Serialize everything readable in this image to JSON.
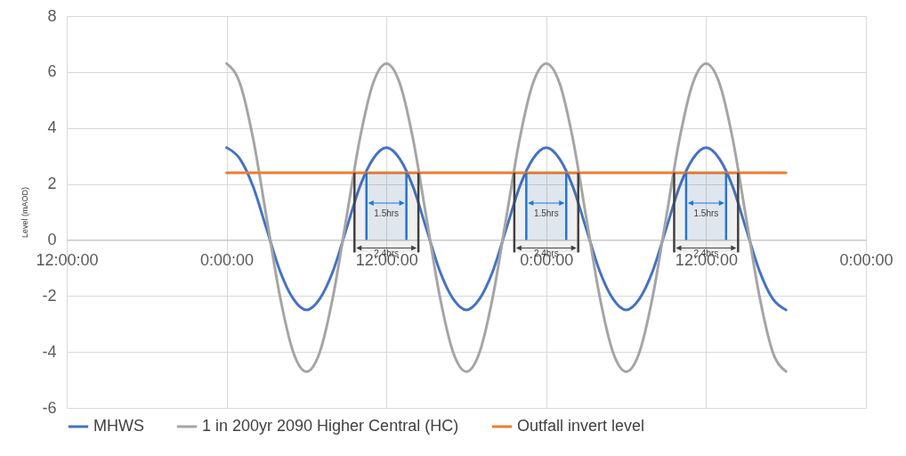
{
  "chart_data": {
    "type": "line",
    "ylabel": "Level (mAOD)",
    "x": [
      "2000-01-02T00:00",
      "2000-01-02T01:00",
      "2000-01-02T02:00",
      "2000-01-02T03:00",
      "2000-01-02T04:00",
      "2000-01-02T05:00",
      "2000-01-02T06:00",
      "2000-01-02T07:00",
      "2000-01-02T08:00",
      "2000-01-02T09:00",
      "2000-01-02T10:00",
      "2000-01-02T11:00",
      "2000-01-02T12:00",
      "2000-01-02T13:00",
      "2000-01-02T14:00",
      "2000-01-02T15:00",
      "2000-01-02T16:00",
      "2000-01-02T17:00",
      "2000-01-02T18:00",
      "2000-01-02T19:00",
      "2000-01-02T20:00",
      "2000-01-02T21:00",
      "2000-01-02T22:00",
      "2000-01-02T23:00",
      "2000-01-03T00:00",
      "2000-01-03T01:00",
      "2000-01-03T02:00",
      "2000-01-03T03:00",
      "2000-01-03T04:00",
      "2000-01-03T05:00",
      "2000-01-03T06:00",
      "2000-01-03T07:00",
      "2000-01-03T08:00",
      "2000-01-03T09:00",
      "2000-01-03T10:00",
      "2000-01-03T11:00",
      "2000-01-03T12:00",
      "2000-01-03T13:00",
      "2000-01-03T14:00",
      "2000-01-03T15:00",
      "2000-01-03T16:00",
      "2000-01-03T17:00",
      "2000-01-03T18:00"
    ],
    "series": [
      {
        "name": "MHWS",
        "color": "#4472c4",
        "values": [
          3.3,
          2.9,
          1.9,
          0.4,
          -1.1,
          -2.1,
          -2.5,
          -2.1,
          -1.1,
          0.4,
          1.9,
          2.9,
          3.3,
          2.9,
          1.9,
          0.4,
          -1.1,
          -2.1,
          -2.5,
          -2.1,
          -1.1,
          0.4,
          1.9,
          2.9,
          3.3,
          2.9,
          1.9,
          0.4,
          -1.1,
          -2.1,
          -2.5,
          -2.1,
          -1.1,
          0.4,
          1.9,
          2.9,
          3.3,
          2.9,
          1.9,
          0.4,
          -1.1,
          -2.1,
          -2.5
        ]
      },
      {
        "name": "1 in 200yr 2090 Higher Central (HC)",
        "color": "#a5a5a5",
        "values": [
          6.3,
          5.6,
          3.6,
          0.8,
          -2.0,
          -4.0,
          -4.7,
          -4.0,
          -2.0,
          0.8,
          3.6,
          5.6,
          6.3,
          5.6,
          3.6,
          0.8,
          -2.0,
          -4.0,
          -4.7,
          -4.0,
          -2.0,
          0.8,
          3.6,
          5.6,
          6.3,
          5.6,
          3.6,
          0.8,
          -2.0,
          -4.0,
          -4.7,
          -4.0,
          -2.0,
          0.8,
          3.6,
          5.6,
          6.3,
          5.6,
          3.6,
          0.8,
          -2.0,
          -4.0,
          -4.7
        ]
      },
      {
        "name": "Outfall invert level",
        "color": "#ed7d31",
        "x": [
          "2000-01-02T00:00",
          "2000-01-03T18:00"
        ],
        "values": [
          2.4,
          2.4
        ]
      }
    ],
    "xlim": [
      "2000-01-01T12:00",
      "2000-01-04T00:00"
    ],
    "xticks": [
      {
        "value": "2000-01-01T12:00",
        "label": "12:00:00"
      },
      {
        "value": "2000-01-02T00:00",
        "label": "0:00:00"
      },
      {
        "value": "2000-01-02T12:00",
        "label": "12:00:00"
      },
      {
        "value": "2000-01-03T00:00",
        "label": "0:00:00"
      },
      {
        "value": "2000-01-03T12:00",
        "label": "12:00:00"
      },
      {
        "value": "2000-01-04T00:00",
        "label": "0:00:00"
      }
    ],
    "ylim": [
      -6,
      8
    ],
    "yticks": [
      -6,
      -4,
      -2,
      0,
      2,
      4,
      6,
      8
    ],
    "bands": [
      {
        "axis": "x",
        "from": "2000-01-02T10:30",
        "to": "2000-01-02T13:30",
        "label": "1.5hrs",
        "color": "#1f77d4"
      },
      {
        "axis": "x",
        "from": "2000-01-02T09:36",
        "to": "2000-01-02T14:24",
        "label": "2.4hrs",
        "color": "#404040"
      },
      {
        "axis": "x",
        "from": "2000-01-02T22:30",
        "to": "2000-01-03T01:30",
        "label": "1.5hrs",
        "color": "#1f77d4"
      },
      {
        "axis": "x",
        "from": "2000-01-02T21:36",
        "to": "2000-01-03T02:24",
        "label": "2.4hrs",
        "color": "#404040"
      },
      {
        "axis": "x",
        "from": "2000-01-03T10:30",
        "to": "2000-01-03T13:30",
        "label": "1.5hrs",
        "color": "#1f77d4"
      },
      {
        "axis": "x",
        "from": "2000-01-03T09:36",
        "to": "2000-01-03T14:24",
        "label": "2.4hrs",
        "color": "#404040"
      }
    ],
    "grid": true,
    "legend": "bottom",
    "line_style": "solid",
    "marker": "none"
  }
}
